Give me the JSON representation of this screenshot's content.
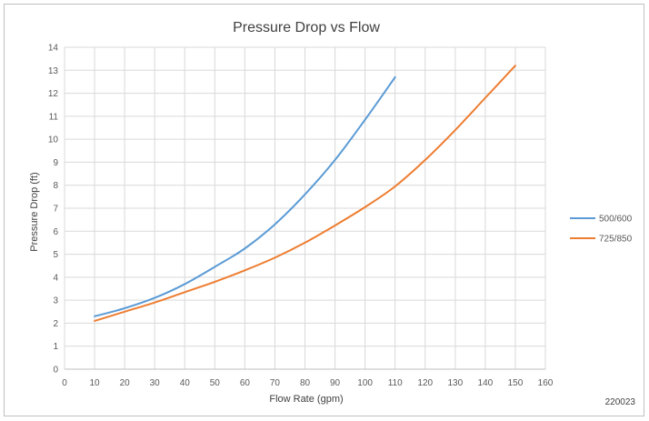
{
  "chart_data": {
    "type": "line",
    "title": "Pressure Drop vs Flow",
    "xlabel": "Flow Rate (gpm)",
    "ylabel": "Pressure Drop (ft)",
    "xlim": [
      0,
      160
    ],
    "ylim": [
      0,
      14
    ],
    "xticks": [
      0,
      10,
      20,
      30,
      40,
      50,
      60,
      70,
      80,
      90,
      100,
      110,
      120,
      130,
      140,
      150,
      160
    ],
    "yticks": [
      0,
      1,
      2,
      3,
      4,
      5,
      6,
      7,
      8,
      9,
      10,
      11,
      12,
      13,
      14
    ],
    "grid": true,
    "legend_position": "right",
    "series": [
      {
        "name": "500/600",
        "color": "#5b9bd5",
        "x": [
          10,
          20,
          30,
          40,
          50,
          60,
          70,
          80,
          90,
          100,
          110
        ],
        "y": [
          2.3,
          2.65,
          3.1,
          3.7,
          4.45,
          5.25,
          6.3,
          7.6,
          9.1,
          10.85,
          12.7
        ]
      },
      {
        "name": "725/850",
        "color": "#ed7d31",
        "x": [
          10,
          20,
          30,
          40,
          50,
          60,
          70,
          80,
          90,
          100,
          110,
          120,
          130,
          140,
          150
        ],
        "y": [
          2.1,
          2.5,
          2.9,
          3.35,
          3.8,
          4.3,
          4.85,
          5.5,
          6.25,
          7.05,
          7.95,
          9.1,
          10.4,
          11.8,
          13.2
        ]
      }
    ]
  },
  "figure_id": "220023"
}
